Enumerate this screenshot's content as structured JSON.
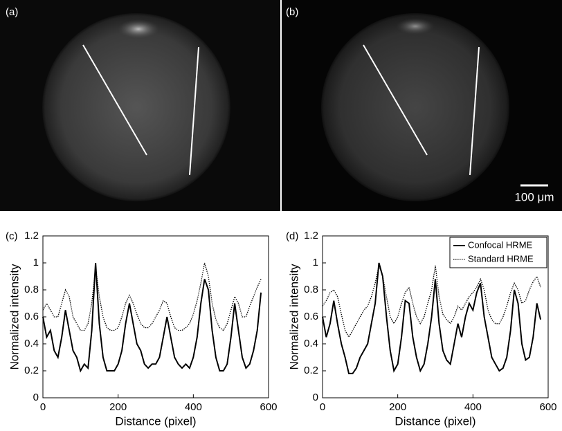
{
  "images": [
    {
      "label": "(a)"
    },
    {
      "label": "(b)"
    }
  ],
  "scale_bar": "100 μm",
  "chart_data": [
    {
      "type": "line",
      "label": "(c)",
      "xlabel": "Distance (pixel)",
      "ylabel": "Normalized intensity",
      "xlim": [
        0,
        600
      ],
      "xticks": [
        0,
        200,
        400,
        600
      ],
      "ylim": [
        0,
        1.2
      ],
      "yticks": [
        0,
        0.2,
        0.4,
        0.6,
        0.8,
        1,
        1.2
      ],
      "x": [
        0,
        10,
        20,
        30,
        40,
        50,
        60,
        70,
        80,
        90,
        100,
        110,
        120,
        130,
        140,
        150,
        160,
        170,
        180,
        190,
        200,
        210,
        220,
        230,
        240,
        250,
        260,
        270,
        280,
        290,
        300,
        310,
        320,
        330,
        340,
        350,
        360,
        370,
        380,
        390,
        400,
        410,
        420,
        430,
        440,
        450,
        460,
        470,
        480,
        490,
        500,
        510,
        520,
        530,
        540,
        550,
        560,
        570,
        580
      ],
      "series": [
        {
          "name": "Confocal HRME",
          "color": "#000000",
          "style": "solid",
          "values": [
            0.6,
            0.45,
            0.5,
            0.35,
            0.3,
            0.45,
            0.65,
            0.5,
            0.35,
            0.3,
            0.2,
            0.25,
            0.22,
            0.5,
            1.0,
            0.55,
            0.3,
            0.2,
            0.2,
            0.2,
            0.25,
            0.35,
            0.55,
            0.7,
            0.55,
            0.4,
            0.35,
            0.25,
            0.22,
            0.25,
            0.25,
            0.3,
            0.45,
            0.6,
            0.45,
            0.3,
            0.25,
            0.22,
            0.25,
            0.22,
            0.3,
            0.45,
            0.7,
            0.88,
            0.8,
            0.5,
            0.3,
            0.2,
            0.2,
            0.25,
            0.45,
            0.7,
            0.5,
            0.3,
            0.22,
            0.25,
            0.35,
            0.5,
            0.78
          ]
        },
        {
          "name": "Standard HRME",
          "color": "#000000",
          "style": "dotted",
          "values": [
            0.65,
            0.7,
            0.65,
            0.6,
            0.6,
            0.7,
            0.8,
            0.75,
            0.6,
            0.55,
            0.5,
            0.5,
            0.55,
            0.7,
            0.97,
            0.75,
            0.6,
            0.52,
            0.5,
            0.5,
            0.52,
            0.6,
            0.7,
            0.76,
            0.7,
            0.62,
            0.55,
            0.52,
            0.52,
            0.55,
            0.6,
            0.65,
            0.72,
            0.7,
            0.6,
            0.52,
            0.5,
            0.5,
            0.52,
            0.55,
            0.62,
            0.72,
            0.85,
            1.0,
            0.9,
            0.7,
            0.58,
            0.52,
            0.5,
            0.55,
            0.65,
            0.75,
            0.7,
            0.6,
            0.6,
            0.68,
            0.75,
            0.82,
            0.88
          ]
        }
      ]
    },
    {
      "type": "line",
      "label": "(d)",
      "xlabel": "Distance (pixel)",
      "ylabel": "Normalized intensity",
      "xlim": [
        0,
        600
      ],
      "xticks": [
        0,
        200,
        400,
        600
      ],
      "ylim": [
        0,
        1.2
      ],
      "yticks": [
        0,
        0.2,
        0.4,
        0.6,
        0.8,
        1,
        1.2
      ],
      "legend": "upper right",
      "x": [
        0,
        10,
        20,
        30,
        40,
        50,
        60,
        70,
        80,
        90,
        100,
        110,
        120,
        130,
        140,
        150,
        160,
        170,
        180,
        190,
        200,
        210,
        220,
        230,
        240,
        250,
        260,
        270,
        280,
        290,
        300,
        310,
        320,
        330,
        340,
        350,
        360,
        370,
        380,
        390,
        400,
        410,
        420,
        430,
        440,
        450,
        460,
        470,
        480,
        490,
        500,
        510,
        520,
        530,
        540,
        550,
        560,
        570,
        580
      ],
      "series": [
        {
          "name": "Confocal HRME",
          "color": "#000000",
          "style": "solid",
          "values": [
            0.6,
            0.45,
            0.55,
            0.72,
            0.55,
            0.4,
            0.3,
            0.18,
            0.18,
            0.22,
            0.3,
            0.35,
            0.4,
            0.55,
            0.7,
            1.0,
            0.9,
            0.6,
            0.35,
            0.2,
            0.25,
            0.45,
            0.72,
            0.7,
            0.45,
            0.3,
            0.2,
            0.25,
            0.4,
            0.6,
            0.88,
            0.55,
            0.35,
            0.28,
            0.25,
            0.4,
            0.55,
            0.45,
            0.6,
            0.7,
            0.65,
            0.78,
            0.85,
            0.6,
            0.45,
            0.3,
            0.25,
            0.2,
            0.22,
            0.3,
            0.5,
            0.8,
            0.7,
            0.4,
            0.28,
            0.3,
            0.45,
            0.7,
            0.58
          ]
        },
        {
          "name": "Standard HRME",
          "color": "#000000",
          "style": "dotted",
          "values": [
            0.68,
            0.72,
            0.78,
            0.8,
            0.75,
            0.62,
            0.5,
            0.45,
            0.5,
            0.55,
            0.6,
            0.65,
            0.68,
            0.75,
            0.85,
            0.98,
            0.9,
            0.75,
            0.6,
            0.55,
            0.6,
            0.7,
            0.78,
            0.82,
            0.7,
            0.6,
            0.55,
            0.6,
            0.7,
            0.8,
            0.98,
            0.75,
            0.62,
            0.58,
            0.55,
            0.6,
            0.68,
            0.65,
            0.7,
            0.75,
            0.78,
            0.82,
            0.88,
            0.8,
            0.65,
            0.58,
            0.55,
            0.55,
            0.6,
            0.68,
            0.78,
            0.85,
            0.8,
            0.7,
            0.72,
            0.8,
            0.86,
            0.9,
            0.82
          ]
        }
      ]
    }
  ]
}
